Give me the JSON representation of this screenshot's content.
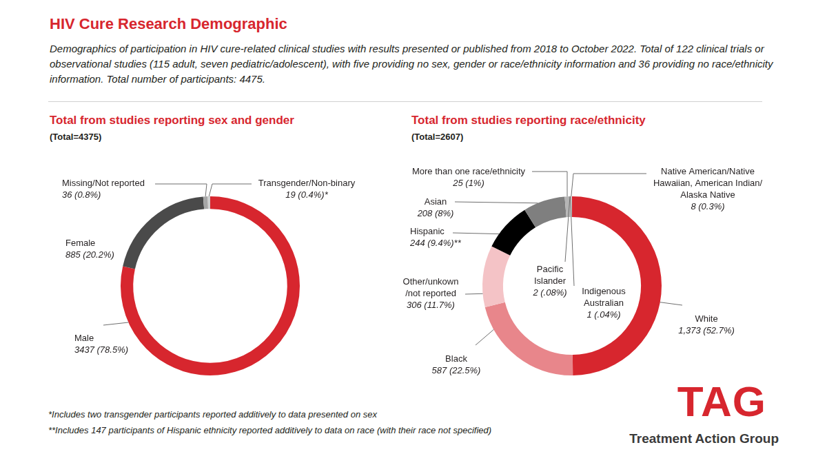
{
  "header": {
    "title": "HIV Cure Research Demographic",
    "subtitle": "Demographics of participation in HIV cure-related clinical studies with results presented or published from 2018 to October 2022. Total of 122 clinical trials or observational studies (115 adult, seven pediatric/adolescent), with five providing no sex, gender or race/ethnicity information and 36 providing no race/ethnicity information. Total number of participants: 4475."
  },
  "chart_data": [
    {
      "type": "doughnut",
      "title": "Total from studies reporting sex and gender",
      "subtitle": "(Total=4375)",
      "categories": [
        "Male",
        "Female",
        "Missing/Not reported",
        "Transgender/Non-binary"
      ],
      "values": [
        3437,
        885,
        36,
        19
      ],
      "value_labels": [
        "3437 (78.5%)",
        "885 (20.2%)",
        "36 (0.8%)",
        "19 (0.4%)*"
      ],
      "colors": [
        "#d7262e",
        "#4a4a4a",
        "#a6a6a6",
        "#d0d0d0"
      ],
      "data_labels": true
    },
    {
      "type": "doughnut",
      "title": "Total from studies reporting race/ethnicity",
      "subtitle": "(Total=2607)",
      "categories": [
        "White",
        "Black",
        [
          "Other/unkown",
          "/not reported"
        ],
        "Hispanic",
        "Asian",
        "More than one race/ethnicity",
        [
          "Pacific",
          "Islander"
        ],
        [
          "Indigenous",
          "Australian"
        ],
        [
          "Native American/Native",
          "Hawaiian, American Indian/",
          "Alaska Native"
        ]
      ],
      "values": [
        1373,
        587,
        306,
        244,
        208,
        25,
        2,
        1,
        8
      ],
      "value_labels": [
        "1,373 (52.7%)",
        "587 (22.5%)",
        "306 (11.7%)",
        "244 (9.4%)**",
        "208 (8%)",
        "25 (1%)",
        "2 (.08%)",
        "1 (.04%)",
        "8 (0.3%)"
      ],
      "colors": [
        "#d7262e",
        "#e8868b",
        "#f4c3c6",
        "#000000",
        "#7f7f7f",
        "#b5b5b5",
        "#cfcfcf",
        "#cfcfcf",
        "#cfcfcf"
      ],
      "data_labels": true
    }
  ],
  "footnotes": [
    "*Includes two transgender participants reported additively to data presented on sex",
    "**Includes 147 participants of Hispanic ethnicity reported additively to data on race (with their race not specified)"
  ],
  "logo": {
    "text": "TAG",
    "name": "Treatment Action Group"
  }
}
